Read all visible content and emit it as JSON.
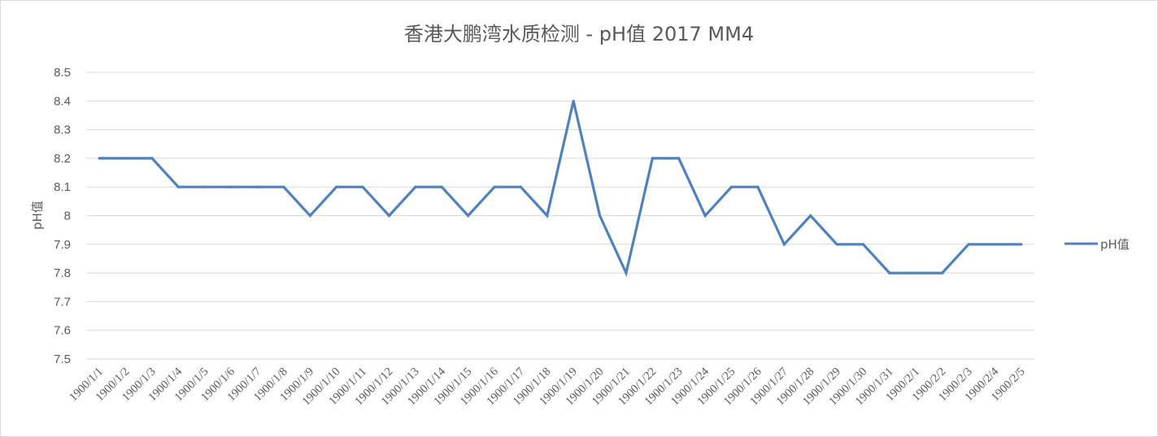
{
  "chart_data": {
    "type": "line",
    "title": "香港大鹏湾水质检测 - pH值 2017 MM4",
    "xlabel": "",
    "ylabel": "pH值",
    "ylim": [
      7.5,
      8.5
    ],
    "ytick_step": 0.1,
    "yticks": [
      "7.5",
      "7.6",
      "7.7",
      "7.8",
      "7.9",
      "8",
      "8.1",
      "8.2",
      "8.3",
      "8.4",
      "8.5"
    ],
    "grid": true,
    "legend_position": "right",
    "categories": [
      "1900/1/1",
      "1900/1/2",
      "1900/1/3",
      "1900/1/4",
      "1900/1/5",
      "1900/1/6",
      "1900/1/7",
      "1900/1/8",
      "1900/1/9",
      "1900/1/10",
      "1900/1/11",
      "1900/1/12",
      "1900/1/13",
      "1900/1/14",
      "1900/1/15",
      "1900/1/16",
      "1900/1/17",
      "1900/1/18",
      "1900/1/19",
      "1900/1/20",
      "1900/1/21",
      "1900/1/22",
      "1900/1/23",
      "1900/1/24",
      "1900/1/25",
      "1900/1/26",
      "1900/1/27",
      "1900/1/28",
      "1900/1/29",
      "1900/1/30",
      "1900/1/31",
      "1900/2/1",
      "1900/2/2",
      "1900/2/3",
      "1900/2/4",
      "1900/2/5"
    ],
    "series": [
      {
        "name": "pH值",
        "color": "#4f81bd",
        "values": [
          8.2,
          8.2,
          8.2,
          8.1,
          8.1,
          8.1,
          8.1,
          8.1,
          8.0,
          8.1,
          8.1,
          8.0,
          8.1,
          8.1,
          8.0,
          8.1,
          8.1,
          8.0,
          8.4,
          8.0,
          7.8,
          8.2,
          8.2,
          8.0,
          8.1,
          8.1,
          7.9,
          8.0,
          7.9,
          7.9,
          7.8,
          7.8,
          7.8,
          7.9,
          7.9,
          7.9
        ]
      }
    ],
    "colors": {
      "gridline": "#d9d9d9",
      "text": "#595959",
      "border": "#d9d9d9"
    }
  }
}
